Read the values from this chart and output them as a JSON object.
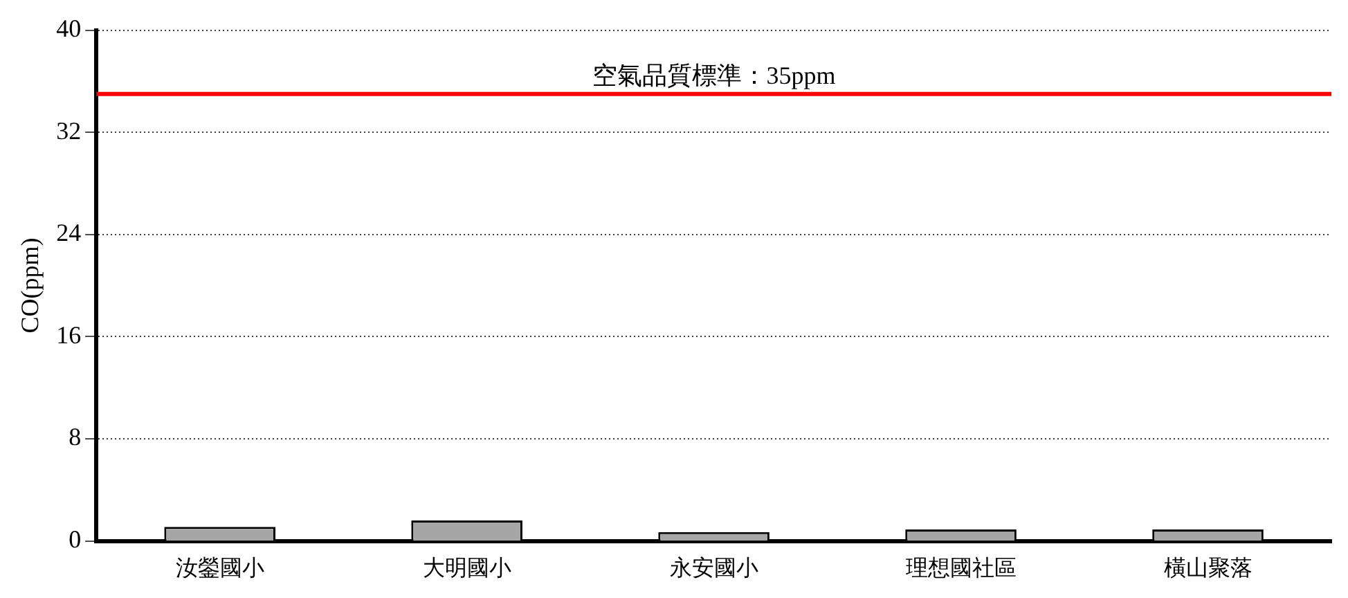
{
  "chart_data": {
    "type": "bar",
    "ylabel": "CO(ppm)",
    "categories": [
      "汝鎣國小",
      "大明國小",
      "永安國小",
      "理想國社區",
      "橫山聚落"
    ],
    "values": [
      1.1,
      1.6,
      0.7,
      0.9,
      0.9
    ],
    "color": "#a6a6a6",
    "ylim": [
      0,
      40
    ],
    "yticks": [
      0,
      8,
      16,
      24,
      32,
      40
    ],
    "grid": "y",
    "ref_lines": [
      {
        "axis": "y",
        "value": 35,
        "label": "空氣品質標準：35ppm",
        "color": "#ff0000"
      }
    ]
  }
}
